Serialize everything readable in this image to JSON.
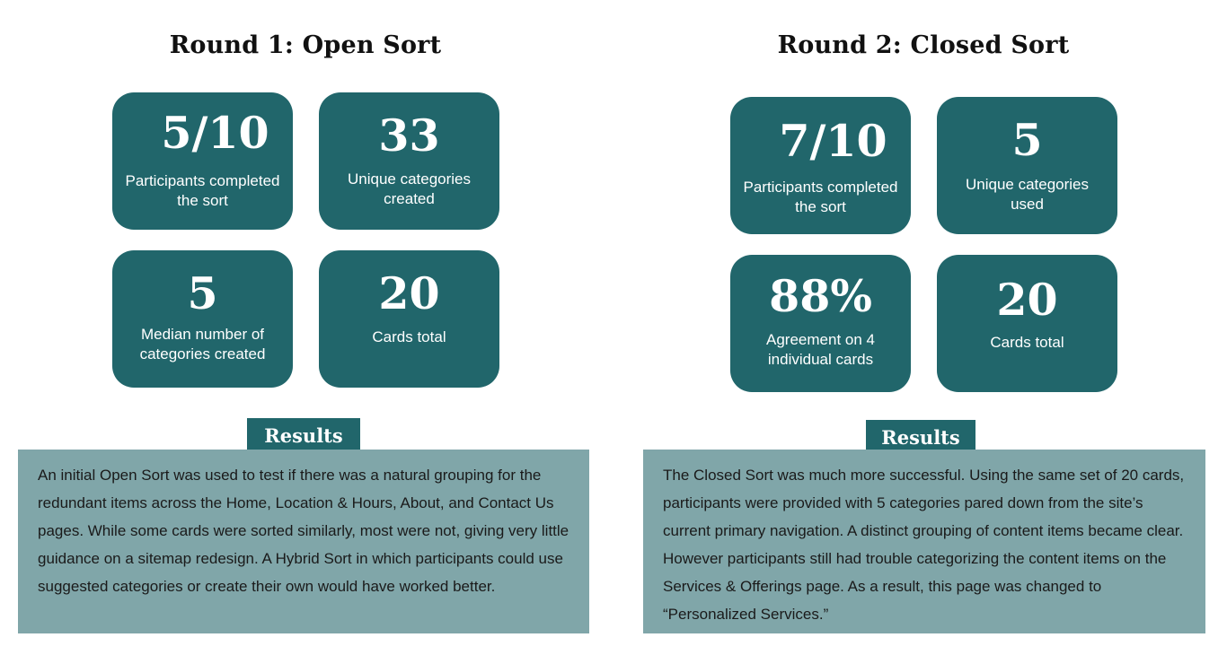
{
  "round1": {
    "title": "Round 1: Open Sort",
    "stats": [
      {
        "value": "5/10",
        "caption": "Participants completed the sort"
      },
      {
        "value": "33",
        "caption": "Unique categories created"
      },
      {
        "value": "5",
        "caption": "Median number of categories created"
      },
      {
        "value": "20",
        "caption": "Cards total"
      }
    ],
    "results_label": "Results",
    "results_text": "An initial Open Sort was used to test if there was a natural grouping for the redundant items across the Home, Location & Hours, About, and Contact Us pages. While some cards were sorted similarly, most were not, giving very little guidance on a sitemap redesign. A Hybrid Sort in which participants could use suggested categories or create their own would have worked better."
  },
  "round2": {
    "title": "Round 2: Closed Sort",
    "stats": [
      {
        "value": "7/10",
        "caption": "Participants completed the sort"
      },
      {
        "value": "5",
        "caption": "Unique categories used"
      },
      {
        "value": "88%",
        "caption": "Agreement on 4 individual cards"
      },
      {
        "value": "20",
        "caption": "Cards total"
      }
    ],
    "results_label": "Results",
    "results_text": "The Closed Sort was much more successful. Using the same set of 20 cards, participants were provided with 5 categories pared down from the site’s current primary navigation. A distinct grouping of content items became clear. However participants still had trouble categorizing the content items on the Services & Offerings page. As a result, this page was changed to “Personalized Services.”"
  },
  "colors": {
    "card_background": "#21666b",
    "results_background": "#80a6a9",
    "card_text": "#ffffff"
  }
}
